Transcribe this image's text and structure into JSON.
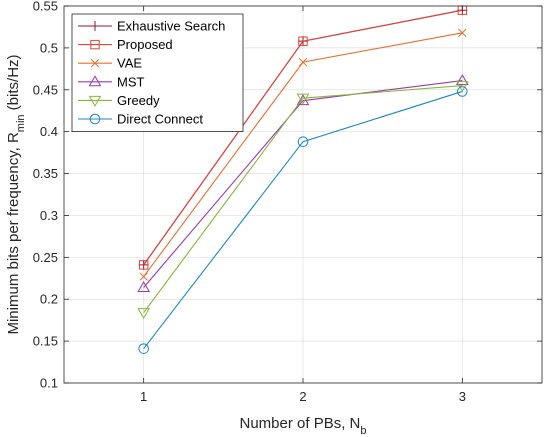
{
  "chart_data": {
    "type": "line",
    "x": [
      1,
      2,
      3
    ],
    "xlim": [
      0.5,
      3.5
    ],
    "ylim": [
      0.1,
      0.55
    ],
    "xticks": [
      "1",
      "2",
      "3"
    ],
    "yticks": [
      "0.1",
      "0.15",
      "0.2",
      "0.25",
      "0.3",
      "0.35",
      "0.4",
      "0.45",
      "0.5",
      "0.55"
    ],
    "xlabel": {
      "main": "Number of PBs, N",
      "sub": "b"
    },
    "ylabel": {
      "main": "Minimum bits per frequency, R",
      "sub": "min",
      "unit": " (bits/Hz)"
    },
    "grid": true,
    "legend_position": "top-left",
    "series": [
      {
        "name": "Exhaustive Search",
        "values": [
          0.241,
          0.508,
          0.545
        ],
        "color": "#8b1a3a",
        "marker": "plus"
      },
      {
        "name": "Proposed",
        "values": [
          0.241,
          0.508,
          0.545
        ],
        "color": "#e0453a",
        "marker": "square"
      },
      {
        "name": "VAE",
        "values": [
          0.227,
          0.483,
          0.518
        ],
        "color": "#e8702f",
        "marker": "x"
      },
      {
        "name": "MST",
        "values": [
          0.214,
          0.437,
          0.461
        ],
        "color": "#9b39ad",
        "marker": "triangle-up"
      },
      {
        "name": "Greedy",
        "values": [
          0.184,
          0.44,
          0.455
        ],
        "color": "#86b83c",
        "marker": "triangle-down"
      },
      {
        "name": "Direct Connect",
        "values": [
          0.141,
          0.388,
          0.448
        ],
        "color": "#1f87c2",
        "marker": "circle"
      }
    ]
  }
}
